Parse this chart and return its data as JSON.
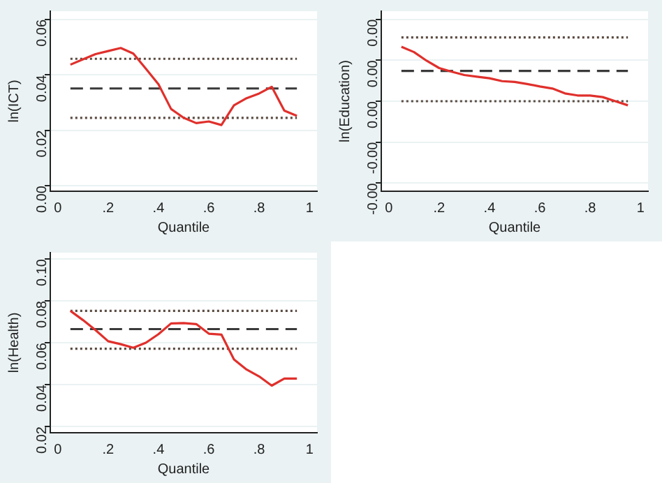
{
  "chart_data": [
    {
      "type": "line",
      "xlabel": "Quantile",
      "ylabel": "ln(ICT)",
      "xlim": [
        -0.03,
        1.03
      ],
      "ylim": [
        -0.002,
        0.063
      ],
      "xticks": [
        {
          "value": 0,
          "label": "0"
        },
        {
          "value": 0.2,
          "label": ".2"
        },
        {
          "value": 0.4,
          "label": ".4"
        },
        {
          "value": 0.6,
          "label": ".6"
        },
        {
          "value": 0.8,
          "label": ".8"
        },
        {
          "value": 1,
          "label": "1"
        }
      ],
      "yticks": [
        {
          "value": 0,
          "label": "0.00"
        },
        {
          "value": 0.02,
          "label": "0.02"
        },
        {
          "value": 0.04,
          "label": "0.04"
        },
        {
          "value": 0.06,
          "label": "0.06"
        }
      ],
      "grid": "y",
      "legend": false,
      "marker": "none",
      "series": [
        {
          "color": "#e0302c",
          "line_style": "solid",
          "x": [
            0.05,
            0.1,
            0.15,
            0.2,
            0.25,
            0.3,
            0.35,
            0.4,
            0.45,
            0.5,
            0.55,
            0.6,
            0.65,
            0.7,
            0.75,
            0.8,
            0.85,
            0.9,
            0.95
          ],
          "values": [
            0.0437,
            0.0456,
            0.0475,
            0.0486,
            0.0497,
            0.0477,
            0.0422,
            0.0366,
            0.0277,
            0.0245,
            0.0226,
            0.0232,
            0.0219,
            0.029,
            0.0316,
            0.0333,
            0.0357,
            0.0271,
            0.0252
          ]
        },
        {
          "color": "#3a3a3a",
          "line_style": "dashed",
          "x": [
            0.05,
            0.95
          ],
          "values": [
            0.0351,
            0.0351
          ]
        },
        {
          "color": "#5a4a40",
          "line_style": "dotted",
          "x": [
            0.05,
            0.95
          ],
          "values": [
            0.0458,
            0.0458
          ]
        },
        {
          "color": "#5a4a40",
          "line_style": "dotted",
          "x": [
            0.05,
            0.95
          ],
          "values": [
            0.0245,
            0.0245
          ]
        }
      ]
    },
    {
      "type": "line",
      "xlabel": "Quantile",
      "ylabel": "ln(Education)",
      "xlim": [
        -0.03,
        1.03
      ],
      "ylim": [
        -0.0022,
        0.0022
      ],
      "xticks": [
        {
          "value": 0,
          "label": "0"
        },
        {
          "value": 0.2,
          "label": ".2"
        },
        {
          "value": 0.4,
          "label": ".4"
        },
        {
          "value": 0.6,
          "label": ".6"
        },
        {
          "value": 0.8,
          "label": ".8"
        },
        {
          "value": 1,
          "label": "1"
        }
      ],
      "yticks": [
        {
          "value": -0.002,
          "label": "-0.00"
        },
        {
          "value": -0.001,
          "label": "-0.00"
        },
        {
          "value": 0,
          "label": "0.00"
        },
        {
          "value": 0.001,
          "label": "0.00"
        },
        {
          "value": 0.002,
          "label": "0.00"
        }
      ],
      "grid": "y",
      "legend": false,
      "marker": "none",
      "series": [
        {
          "color": "#e0302c",
          "line_style": "solid",
          "x": [
            0.05,
            0.1,
            0.15,
            0.2,
            0.25,
            0.3,
            0.35,
            0.4,
            0.45,
            0.5,
            0.55,
            0.6,
            0.65,
            0.7,
            0.75,
            0.8,
            0.85,
            0.9,
            0.95
          ],
          "values": [
            0.00133,
            0.0012,
            0.00099,
            0.00081,
            0.00072,
            0.00064,
            0.0006,
            0.00056,
            0.00049,
            0.00047,
            0.00042,
            0.00036,
            0.00031,
            0.00019,
            0.00014,
            0.00014,
            0.0001,
            0,
            -0.0001
          ]
        },
        {
          "color": "#3a3a3a",
          "line_style": "dashed",
          "x": [
            0.05,
            0.95
          ],
          "values": [
            0.00074,
            0.00074
          ]
        },
        {
          "color": "#5a4a40",
          "line_style": "dotted",
          "x": [
            0.05,
            0.95
          ],
          "values": [
            0.00156,
            0.00156
          ]
        },
        {
          "color": "#5a4a40",
          "line_style": "dotted",
          "x": [
            0.05,
            0.95
          ],
          "values": [
            0,
            0
          ]
        }
      ]
    },
    {
      "type": "line",
      "xlabel": "Quantile",
      "ylabel": "ln(Health)",
      "xlim": [
        -0.03,
        1.03
      ],
      "ylim": [
        0.017,
        0.103
      ],
      "xticks": [
        {
          "value": 0,
          "label": "0"
        },
        {
          "value": 0.2,
          "label": ".2"
        },
        {
          "value": 0.4,
          "label": ".4"
        },
        {
          "value": 0.6,
          "label": ".6"
        },
        {
          "value": 0.8,
          "label": ".8"
        },
        {
          "value": 1,
          "label": "1"
        }
      ],
      "yticks": [
        {
          "value": 0.02,
          "label": "0.02"
        },
        {
          "value": 0.04,
          "label": "0.04"
        },
        {
          "value": 0.06,
          "label": "0.06"
        },
        {
          "value": 0.08,
          "label": "0.08"
        },
        {
          "value": 0.1,
          "label": "0.10"
        }
      ],
      "grid": "y",
      "legend": false,
      "marker": "none",
      "series": [
        {
          "color": "#e0302c",
          "line_style": "solid",
          "x": [
            0.05,
            0.1,
            0.15,
            0.2,
            0.25,
            0.3,
            0.35,
            0.4,
            0.45,
            0.5,
            0.55,
            0.6,
            0.65,
            0.7,
            0.75,
            0.8,
            0.85,
            0.9,
            0.95
          ],
          "values": [
            0.0752,
            0.0708,
            0.066,
            0.0607,
            0.0593,
            0.0576,
            0.06,
            0.0641,
            0.0692,
            0.0694,
            0.0689,
            0.0643,
            0.0639,
            0.052,
            0.0472,
            0.0439,
            0.0395,
            0.0429,
            0.0429
          ]
        },
        {
          "color": "#3a3a3a",
          "line_style": "dashed",
          "x": [
            0.05,
            0.95
          ],
          "values": [
            0.0665,
            0.0665
          ]
        },
        {
          "color": "#5a4a40",
          "line_style": "dotted",
          "x": [
            0.05,
            0.95
          ],
          "values": [
            0.0752,
            0.0752
          ]
        },
        {
          "color": "#5a4a40",
          "line_style": "dotted",
          "x": [
            0.05,
            0.95
          ],
          "values": [
            0.0571,
            0.0571
          ]
        }
      ]
    }
  ]
}
